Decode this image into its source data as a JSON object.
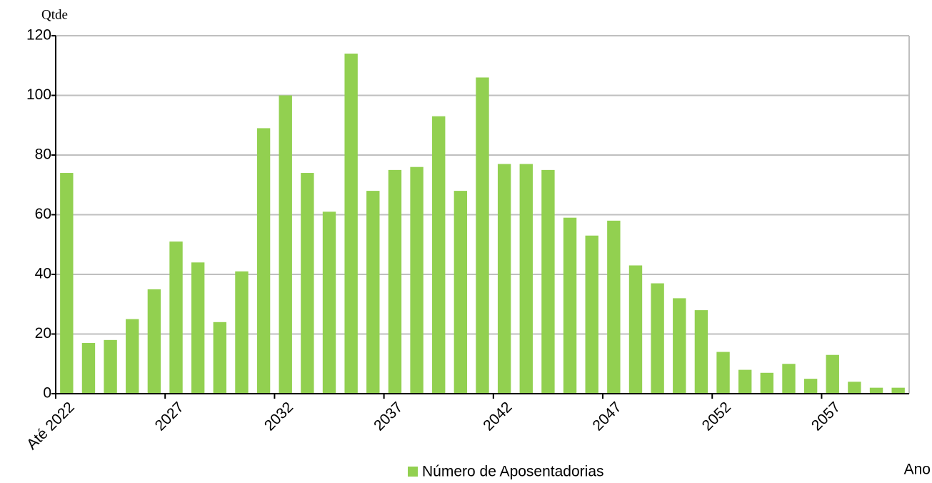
{
  "chart_data": {
    "type": "bar",
    "y_label": "Qtde",
    "x_label": "Ano",
    "categories": [
      "Até 2022",
      null,
      null,
      null,
      null,
      "2027",
      null,
      null,
      null,
      null,
      "2032",
      null,
      null,
      null,
      null,
      "2037",
      null,
      null,
      null,
      null,
      "2042",
      null,
      null,
      null,
      null,
      "2047",
      null,
      null,
      null,
      null,
      "2052",
      null,
      null,
      null,
      null,
      "2057",
      null,
      null,
      null
    ],
    "series": [
      {
        "name": "Número de Aposentadorias",
        "color": "#92d050",
        "values": [
          74,
          17,
          18,
          25,
          35,
          51,
          44,
          24,
          41,
          89,
          100,
          74,
          61,
          114,
          68,
          75,
          76,
          93,
          68,
          106,
          77,
          77,
          75,
          59,
          53,
          58,
          43,
          37,
          32,
          28,
          14,
          8,
          7,
          10,
          5,
          13,
          4,
          2,
          2
        ]
      }
    ],
    "ylim": [
      0,
      120
    ],
    "yticks": [
      0,
      20,
      40,
      60,
      80,
      100,
      120
    ],
    "grid": true
  }
}
